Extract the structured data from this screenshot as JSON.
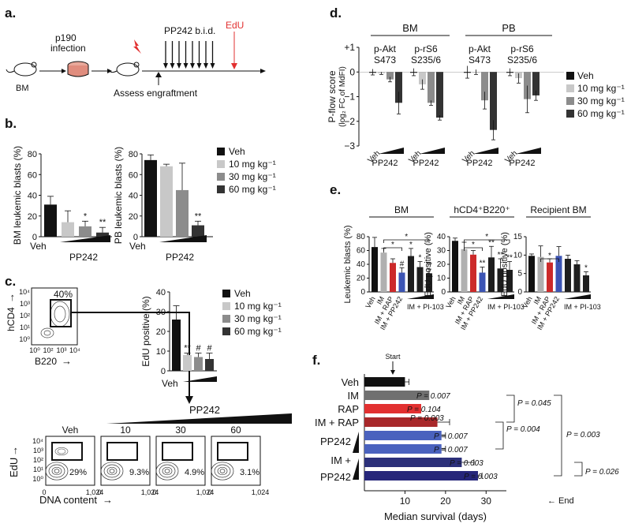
{
  "panel_labels": {
    "a": "a.",
    "b": "b.",
    "c": "c.",
    "d": "d.",
    "e": "e.",
    "f": "f."
  },
  "doses": [
    "Veh",
    "10 mg kg⁻¹",
    "30 mg kg⁻¹",
    "60 mg kg⁻¹"
  ],
  "dose_colors": [
    "#111111",
    "#c8c8c8",
    "#8c8c8c",
    "#333333"
  ],
  "panel_a": {
    "bm": "BM",
    "infection": "p190",
    "infection2": "infection",
    "pp242": "PP242 b.i.d.",
    "edu": "EdU",
    "assess": "Assess engraftment"
  },
  "panel_c": {
    "percent_gate": "40%",
    "hcd4": "hCD4",
    "b220": "B220",
    "edu_axis": "EdU",
    "dna_axis": "DNA content",
    "pp242": "PP242",
    "flow_labels": [
      "Veh",
      "10",
      "30",
      "60"
    ],
    "flow_percents": [
      "29%",
      "9.3%",
      "4.9%",
      "3.1%"
    ],
    "tick_end": "1,024",
    "tick_zero": "0",
    "log_ticks": [
      "10⁴",
      "10³",
      "10²",
      "10¹",
      "10⁰"
    ],
    "b220_ticks": [
      "10⁰",
      "10²",
      "10³",
      "10⁴"
    ]
  },
  "chart_data": [
    {
      "id": "b-left",
      "type": "bar",
      "ylabel": "BM leukemic blasts (%)",
      "categories": [
        "Veh",
        "10 mg kg⁻¹",
        "30 mg kg⁻¹",
        "60 mg kg⁻¹"
      ],
      "values": [
        31,
        14,
        10,
        4
      ],
      "errors": [
        8,
        11,
        5,
        5
      ],
      "annotations": [
        "",
        "",
        "*",
        "**"
      ],
      "ylim": [
        0,
        80
      ],
      "yticks": [
        "0",
        "20",
        "40",
        "60",
        "80"
      ],
      "xlabels": [
        "Veh",
        "PP242"
      ]
    },
    {
      "id": "b-right",
      "type": "bar",
      "ylabel": "PB leukemic blasts (%)",
      "categories": [
        "Veh",
        "10 mg kg⁻¹",
        "30 mg kg⁻¹",
        "60 mg kg⁻¹"
      ],
      "values": [
        74,
        68,
        45,
        11
      ],
      "errors": [
        5,
        2,
        26,
        4
      ],
      "annotations": [
        "",
        "",
        "",
        "**"
      ],
      "ylim": [
        0,
        80
      ],
      "yticks": [
        "0",
        "20",
        "40",
        "60",
        "80"
      ],
      "xlabels": [
        "Veh",
        "PP242"
      ]
    },
    {
      "id": "c-bar",
      "type": "bar",
      "ylabel": "EdU positive (%)",
      "categories": [
        "Veh",
        "10 mg kg⁻¹",
        "30 mg kg⁻¹",
        "60 mg kg⁻¹"
      ],
      "values": [
        26,
        8,
        7,
        6
      ],
      "errors": [
        7,
        1,
        2,
        3
      ],
      "annotations": [
        "",
        "**",
        "#",
        "#"
      ],
      "ylim": [
        0,
        40
      ],
      "yticks": [
        "0",
        "10",
        "20",
        "30",
        "40"
      ],
      "xlabels": [
        "Veh"
      ]
    },
    {
      "id": "d",
      "type": "bar",
      "ylabel": "P-flow score",
      "ylabel2": "(log₂ FC of MdFI)",
      "ylim": [
        -3,
        1
      ],
      "yticks": [
        "+1",
        "0",
        "−1",
        "−2",
        "−3"
      ],
      "tissues": [
        "BM",
        "PB"
      ],
      "groups": [
        {
          "line1": "p-Akt",
          "line2": "S473",
          "values": [
            0,
            -0.05,
            -0.3,
            -1.25
          ],
          "errors": [
            0.12,
            0.05,
            0.1,
            0.45
          ]
        },
        {
          "line1": "p-rS6",
          "line2": "S235/6",
          "values": [
            0,
            -0.5,
            -1.25,
            -1.85
          ],
          "errors": [
            0.15,
            0.2,
            0.1,
            0.1
          ]
        },
        {
          "line1": "p-Akt",
          "line2": "S473",
          "values": [
            0,
            0,
            -1.15,
            -2.35
          ],
          "errors": [
            0.25,
            0.1,
            0.35,
            0.4
          ]
        },
        {
          "line1": "p-rS6",
          "line2": "S235/6",
          "values": [
            0,
            -0.25,
            -1.1,
            -0.95
          ],
          "errors": [
            0.15,
            0.2,
            0.55,
            0.2
          ]
        }
      ],
      "xlabels": [
        "Veh",
        "PP242"
      ]
    },
    {
      "id": "e",
      "type": "bar",
      "subplots": [
        {
          "title": "BM",
          "ylabel": "Leukemic blasts (%)",
          "ylim": [
            0,
            80
          ],
          "yticks": [
            "0",
            "20",
            "40",
            "60",
            "80"
          ],
          "values": [
            65,
            57,
            42,
            28,
            52,
            36,
            27
          ],
          "errors": [
            14,
            6,
            6,
            7,
            11,
            8,
            6
          ],
          "annotations": [
            "",
            "",
            "",
            "#",
            "*",
            "*",
            "**"
          ],
          "brackets": [
            "*",
            "*"
          ]
        },
        {
          "title": "hCD4⁺B220⁺",
          "ylabel": "EdU positive (%)",
          "ylim": [
            0,
            40
          ],
          "yticks": [
            "0",
            "10",
            "20",
            "30",
            "40"
          ],
          "values": [
            37,
            31,
            27,
            14,
            25,
            17,
            16
          ],
          "errors": [
            2,
            5,
            3,
            4,
            8,
            7,
            6
          ],
          "annotations": [
            "",
            "",
            "",
            "**",
            "**",
            "**",
            "**"
          ],
          "brackets": [
            "*",
            "*"
          ]
        },
        {
          "title": "Recipient BM",
          "ylabel": "EdU positive (%)",
          "ylim": [
            0,
            15
          ],
          "yticks": [
            "0",
            "5",
            "10",
            "15"
          ],
          "values": [
            9.8,
            9.5,
            8,
            9.8,
            9,
            7.5,
            4.5
          ],
          "errors": [
            0.5,
            3,
            1,
            2.5,
            1,
            1,
            1
          ],
          "annotations": [
            "",
            "",
            "",
            "",
            "",
            "",
            "*"
          ],
          "brackets": [
            "*"
          ]
        }
      ],
      "categories": [
        "Veh",
        "IM",
        "IM + RAP",
        "IM + PP242",
        "IM + PI-103",
        "IM + PI-103",
        "IM + PI-103"
      ],
      "xlabels": [
        "Veh",
        "IM",
        "IM + RAP",
        "IM + PP242",
        "IM + PI-103"
      ],
      "colors": [
        "#111111",
        "#b0b0b0",
        "#cc2a2a",
        "#3c54b4",
        "#1e1e1e",
        "#1e1e1e",
        "#1e1e1e"
      ]
    },
    {
      "id": "f",
      "type": "bar",
      "xlabel": "Median survival (days)",
      "xlim": [
        0,
        35
      ],
      "xticks": [
        "10",
        "20",
        "30"
      ],
      "categories": [
        "Veh",
        "IM",
        "RAP",
        "IM + RAP",
        "PP242",
        "PP242",
        "IM + PP242",
        "IM + PP242"
      ],
      "rowlabels": [
        "Veh",
        "IM",
        "RAP",
        "IM + RAP",
        "PP242",
        "IM +",
        "PP242"
      ],
      "values": [
        10,
        16,
        14,
        18,
        19,
        19,
        24,
        28
      ],
      "errors": [
        1,
        0,
        0,
        3,
        1,
        1,
        3,
        1
      ],
      "colors": [
        "#111111",
        "#707070",
        "#e23030",
        "#a8282a",
        "#4a62be",
        "#4a62be",
        "#2c307a",
        "#26267a"
      ],
      "pvalues_inline": [
        "P = 0.007",
        "P = 0.104",
        "P = 0.003",
        "P = 0.007",
        "P = 0.007",
        "P = 0.003",
        "P = 0.003"
      ],
      "pvalues_bracket": [
        "P = 0.045",
        "P = 0.004",
        "P = 0.003",
        "P = 0.026"
      ],
      "start": "Start",
      "end": "End"
    }
  ]
}
